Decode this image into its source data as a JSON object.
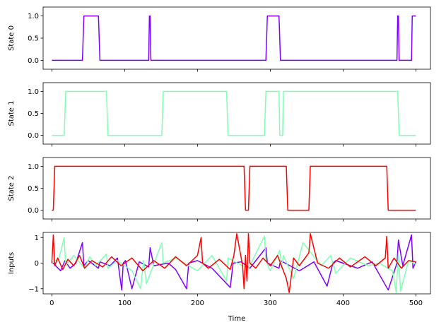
{
  "chart_data": [
    {
      "type": "line",
      "ylabel": "State 0",
      "xlim": [
        -12,
        520
      ],
      "ylim": [
        -0.2,
        1.2
      ],
      "yticks": [
        0.0,
        0.5,
        1.0
      ],
      "ytick_labels": [
        "0.0",
        "0.5",
        "1.0"
      ],
      "xticks": [
        0,
        100,
        200,
        300,
        400,
        500
      ],
      "show_xticklabels": false,
      "series": [
        {
          "color": "#7f00ff",
          "x": [
            0,
            42,
            44,
            64,
            66,
            133,
            134,
            135,
            136,
            294,
            296,
            312,
            314,
            474,
            475,
            476,
            477,
            494,
            495,
            500
          ],
          "y": [
            0,
            0,
            1,
            1,
            0,
            0,
            1,
            1,
            0,
            0,
            1,
            1,
            0,
            0,
            1,
            1,
            0,
            0,
            1,
            1
          ]
        }
      ]
    },
    {
      "type": "line",
      "ylabel": "State 1",
      "xlim": [
        -12,
        520
      ],
      "ylim": [
        -0.2,
        1.2
      ],
      "yticks": [
        0.0,
        0.5,
        1.0
      ],
      "ytick_labels": [
        "0.0",
        "0.5",
        "1.0"
      ],
      "xticks": [
        0,
        100,
        200,
        300,
        400,
        500
      ],
      "show_xticklabels": false,
      "series": [
        {
          "color": "#80ffb4",
          "x": [
            0,
            17,
            19,
            75,
            77,
            151,
            153,
            240,
            242,
            292,
            294,
            312,
            313,
            317,
            318,
            475,
            477,
            500
          ],
          "y": [
            0,
            0,
            1,
            1,
            0,
            0,
            1,
            1,
            0,
            0,
            1,
            1,
            0,
            0,
            1,
            1,
            0,
            0
          ]
        }
      ]
    },
    {
      "type": "line",
      "ylabel": "State 2",
      "xlim": [
        -12,
        520
      ],
      "ylim": [
        -0.2,
        1.2
      ],
      "yticks": [
        0.0,
        0.5,
        1.0
      ],
      "ytick_labels": [
        "0.0",
        "0.5",
        "1.0"
      ],
      "xticks": [
        0,
        100,
        200,
        300,
        400,
        500
      ],
      "show_xticklabels": false,
      "series": [
        {
          "color": "#ff0000",
          "x": [
            0,
            2,
            4,
            264,
            266,
            270,
            272,
            322,
            324,
            353,
            355,
            460,
            462,
            500
          ],
          "y": [
            0,
            0,
            1,
            1,
            0,
            0,
            1,
            1,
            0,
            0,
            1,
            1,
            0,
            0
          ]
        }
      ]
    },
    {
      "type": "line",
      "ylabel": "Inputs",
      "xlabel": "Time",
      "xlim": [
        -12,
        520
      ],
      "ylim": [
        -1.2,
        1.2
      ],
      "yticks": [
        -1,
        0,
        1
      ],
      "ytick_labels": [
        "−1",
        "0",
        "1"
      ],
      "xticks": [
        0,
        100,
        200,
        300,
        400,
        500
      ],
      "xtick_labels": [
        "0",
        "100",
        "200",
        "300",
        "400",
        "500"
      ],
      "show_xticklabels": true,
      "series": [
        {
          "color": "#7f00ff",
          "x": [
            0,
            12,
            18,
            25,
            33,
            42,
            44,
            50,
            64,
            66,
            80,
            90,
            96,
            98,
            101,
            110,
            120,
            133,
            135,
            140,
            160,
            170,
            185,
            188,
            200,
            220,
            245,
            249,
            260,
            272,
            294,
            296,
            312,
            314,
            340,
            360,
            378,
            386,
            390,
            420,
            440,
            462,
            474,
            476,
            482,
            494,
            496,
            500
          ],
          "y": [
            0.05,
            -0.3,
            0.1,
            -0.2,
            0.0,
            0.8,
            -0.1,
            0.1,
            -0.2,
            0.05,
            -0.1,
            0.2,
            -1.05,
            0.0,
            0.1,
            -1.0,
            0.05,
            -0.15,
            0.6,
            -0.1,
            0.0,
            -0.25,
            -1.0,
            0.0,
            0.1,
            -0.2,
            -0.95,
            0.0,
            0.05,
            -0.2,
            0.6,
            0.0,
            -0.2,
            0.1,
            -0.3,
            0.05,
            -0.9,
            0.0,
            0.1,
            -0.2,
            0.05,
            -1.05,
            0.0,
            0.9,
            -0.1,
            1.1,
            -0.2,
            0.05
          ]
        },
        {
          "color": "#80ffb4",
          "x": [
            0,
            10,
            17,
            19,
            30,
            45,
            52,
            60,
            75,
            77,
            90,
            110,
            122,
            126,
            130,
            151,
            153,
            170,
            200,
            220,
            236,
            240,
            242,
            255,
            270,
            292,
            294,
            300,
            313,
            315,
            318,
            332,
            345,
            370,
            383,
            390,
            410,
            435,
            450,
            468,
            473,
            476,
            479,
            490,
            500
          ],
          "y": [
            0.0,
            0.2,
            1.0,
            -0.1,
            0.3,
            -0.2,
            0.25,
            -0.1,
            0.35,
            -0.2,
            0.1,
            -0.3,
            -1.0,
            0.1,
            -0.8,
            0.8,
            0.0,
            0.2,
            -0.3,
            0.3,
            -0.5,
            -0.7,
            0.2,
            0.0,
            -0.2,
            1.05,
            0.1,
            -0.3,
            0.5,
            -0.2,
            0.3,
            -0.6,
            0.8,
            -0.1,
            0.3,
            -0.4,
            0.2,
            -0.1,
            0.0,
            -0.3,
            -1.15,
            0.4,
            -1.1,
            0.1,
            -0.05
          ]
        },
        {
          "color": "#ff0000",
          "x": [
            0,
            2,
            4,
            8,
            15,
            22,
            30,
            38,
            45,
            55,
            70,
            82,
            95,
            110,
            125,
            140,
            155,
            170,
            185,
            200,
            205,
            207,
            215,
            230,
            245,
            250,
            254,
            262,
            264,
            266,
            268,
            270,
            272,
            280,
            290,
            300,
            310,
            322,
            326,
            332,
            340,
            353,
            355,
            365,
            380,
            395,
            410,
            430,
            445,
            458,
            460,
            462,
            470,
            480,
            490,
            500
          ],
          "y": [
            0.0,
            1.1,
            -0.1,
            0.2,
            -0.25,
            0.15,
            -0.1,
            0.3,
            -0.2,
            0.1,
            -0.15,
            0.25,
            -0.1,
            0.2,
            -0.3,
            0.1,
            -0.2,
            0.25,
            -0.1,
            0.3,
            1.0,
            0.0,
            -0.2,
            0.15,
            -0.25,
            0.3,
            1.15,
            -0.1,
            -1.0,
            0.3,
            -0.7,
            1.15,
            0.0,
            -0.2,
            0.2,
            -0.1,
            0.3,
            -0.6,
            -1.15,
            0.2,
            -0.1,
            0.4,
            1.15,
            0.0,
            -0.2,
            0.2,
            -0.15,
            0.25,
            -0.1,
            0.2,
            1.05,
            -0.2,
            0.2,
            -0.2,
            0.1,
            0.05
          ]
        }
      ]
    }
  ]
}
